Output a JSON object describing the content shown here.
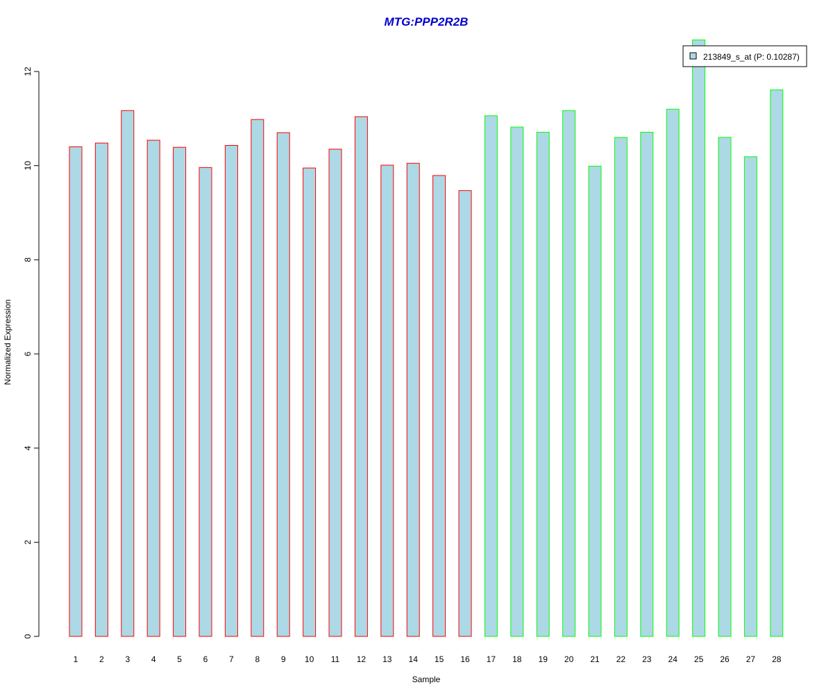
{
  "chart_data": {
    "type": "bar",
    "title": "MTG:PPP2R2B",
    "xlabel": "Sample",
    "ylabel": "Normalized Expression",
    "ylim": [
      0,
      12
    ],
    "yticks": [
      0,
      2,
      4,
      6,
      8,
      10,
      12
    ],
    "grid": false,
    "categories": [
      "1",
      "2",
      "3",
      "4",
      "5",
      "6",
      "7",
      "8",
      "9",
      "10",
      "11",
      "12",
      "13",
      "14",
      "15",
      "16",
      "17",
      "18",
      "19",
      "20",
      "21",
      "22",
      "23",
      "24",
      "25",
      "26",
      "27",
      "28"
    ],
    "values": [
      10.4,
      10.48,
      11.17,
      10.54,
      10.39,
      9.96,
      10.43,
      10.98,
      10.7,
      9.95,
      10.35,
      11.04,
      10.01,
      10.05,
      9.79,
      9.47,
      11.06,
      10.82,
      10.71,
      11.17,
      9.99,
      10.6,
      10.71,
      11.2,
      12.67,
      10.6,
      10.19,
      11.61
    ],
    "groups": [
      "red",
      "red",
      "red",
      "red",
      "red",
      "red",
      "red",
      "red",
      "red",
      "red",
      "red",
      "red",
      "red",
      "red",
      "red",
      "red",
      "green",
      "green",
      "green",
      "green",
      "green",
      "green",
      "green",
      "green",
      "green",
      "green",
      "green",
      "green"
    ],
    "series": [
      {
        "name": "213849_s_at (P: 0.10287)"
      }
    ],
    "legend_position": "top-right",
    "colors": {
      "fill": "#add8e6",
      "border_group1": "#ff0000",
      "border_group2": "#00ff00",
      "title": "#0000cd",
      "axis": "#000000"
    }
  }
}
